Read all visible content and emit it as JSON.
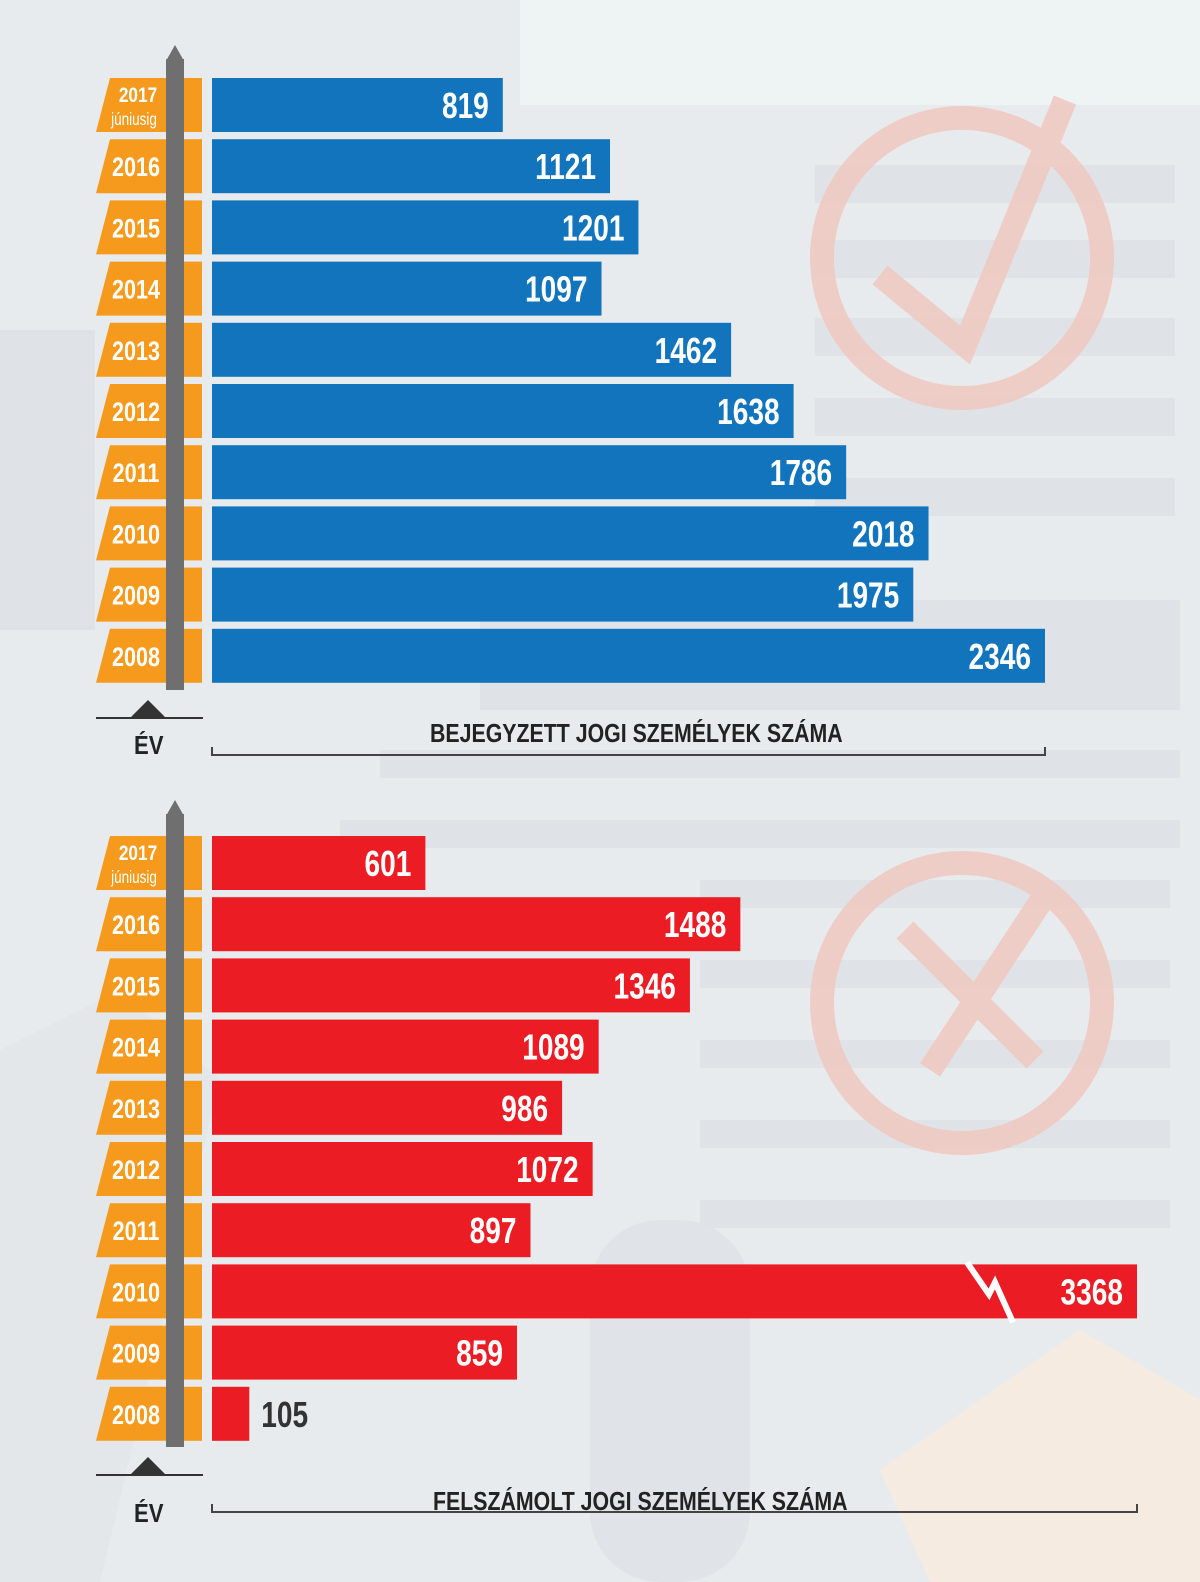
{
  "colors": {
    "registered": "#1174bd",
    "liquidated": "#ec1c24",
    "year_tag": "#f59a1c",
    "timeline": "#6f6f6f"
  },
  "chart_data": [
    {
      "type": "bar",
      "orientation": "horizontal",
      "title": "BEJEGYZETT JOGI SZEMÉLYEK SZÁMA",
      "ylabel": "ÉV",
      "categories": [
        "2017|júniusig",
        "2016",
        "2015",
        "2014",
        "2013",
        "2012",
        "2011",
        "2010",
        "2009",
        "2008"
      ],
      "values": [
        819,
        1121,
        1201,
        1097,
        1462,
        1638,
        1786,
        2018,
        1975,
        2346
      ],
      "xlim": [
        0,
        2346
      ],
      "value_labels": [
        "819",
        "1121",
        "1201",
        "1097",
        "1462",
        "1638",
        "1786",
        "2018",
        "1975",
        "2346"
      ]
    },
    {
      "type": "bar",
      "orientation": "horizontal",
      "title": "FELSZÁMOLT JOGI SZEMÉLYEK SZÁMA",
      "ylabel": "ÉV",
      "categories": [
        "2017|júniusig",
        "2016",
        "2015",
        "2014",
        "2013",
        "2012",
        "2011",
        "2010",
        "2009",
        "2008"
      ],
      "values": [
        601,
        1488,
        1346,
        1089,
        986,
        1072,
        897,
        3368,
        859,
        105
      ],
      "xlim": [
        0,
        2346
      ],
      "axis_break_on": [
        "2010"
      ],
      "value_labels": [
        "601",
        "1488",
        "1346",
        "1089",
        "986",
        "1072",
        "897",
        "3368",
        "859",
        "105"
      ]
    }
  ]
}
